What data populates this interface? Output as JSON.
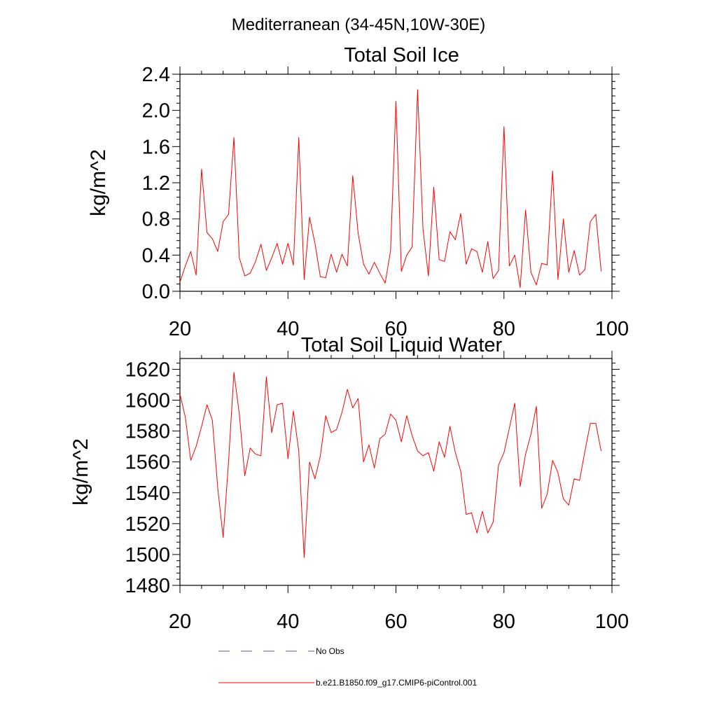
{
  "figure_title": "Mediterranean (34-45N,10W-30E)",
  "legend": [
    {
      "label": "No Obs",
      "color": "#5a5a8a",
      "style": "dashed"
    },
    {
      "label": "b.e21.B1850.f09_g17.CMIP6-piControl.001",
      "color": "#ff0000",
      "style": "solid"
    }
  ],
  "chart_data": [
    {
      "type": "line",
      "title": "Total Soil Ice",
      "xlabel": "",
      "ylabel": "kg/m^2",
      "xlim": [
        20,
        100
      ],
      "ylim": [
        0,
        2.4
      ],
      "xticks": [
        20,
        40,
        60,
        80,
        100
      ],
      "xtick_labels": [
        "20",
        "40",
        "60",
        "80",
        "100"
      ],
      "yticks": [
        0,
        0.4,
        0.8,
        1.2,
        1.6,
        2.0,
        2.4
      ],
      "ytick_labels": [
        "0.0",
        "0.4",
        "0.8",
        "1.2",
        "1.6",
        "2.0",
        "2.4"
      ],
      "series": [
        {
          "name": "b.e21.B1850.f09_g17.CMIP6-piControl.001",
          "color": "#ff0000",
          "x": [
            20,
            21,
            22,
            23,
            24,
            25,
            26,
            27,
            28,
            29,
            30,
            31,
            32,
            33,
            34,
            35,
            36,
            37,
            38,
            39,
            40,
            41,
            42,
            43,
            44,
            45,
            46,
            47,
            48,
            49,
            50,
            51,
            52,
            53,
            54,
            55,
            56,
            57,
            58,
            59,
            60,
            61,
            62,
            63,
            64,
            65,
            66,
            67,
            68,
            69,
            70,
            71,
            72,
            73,
            74,
            75,
            76,
            77,
            78,
            79,
            80,
            81,
            82,
            83,
            84,
            85,
            86,
            87,
            88,
            89,
            90,
            91,
            92,
            93,
            94,
            95,
            96,
            97,
            98
          ],
          "values": [
            0.1,
            0.28,
            0.44,
            0.18,
            1.35,
            0.65,
            0.58,
            0.44,
            0.77,
            0.85,
            1.7,
            0.37,
            0.17,
            0.2,
            0.33,
            0.52,
            0.23,
            0.37,
            0.53,
            0.3,
            0.53,
            0.29,
            1.7,
            0.13,
            0.82,
            0.53,
            0.16,
            0.15,
            0.41,
            0.21,
            0.41,
            0.28,
            1.28,
            0.64,
            0.3,
            0.19,
            0.32,
            0.2,
            0.09,
            0.45,
            2.1,
            0.22,
            0.4,
            0.49,
            2.23,
            0.69,
            0.17,
            1.15,
            0.35,
            0.33,
            0.66,
            0.57,
            0.86,
            0.3,
            0.47,
            0.44,
            0.21,
            0.55,
            0.14,
            0.23,
            1.82,
            0.28,
            0.4,
            0.04,
            0.9,
            0.21,
            0.07,
            0.31,
            0.29,
            1.33,
            0.13,
            0.8,
            0.21,
            0.45,
            0.18,
            0.24,
            0.77,
            0.85,
            0.22
          ]
        }
      ]
    },
    {
      "type": "line",
      "title": "Total Soil Liquid Water",
      "xlabel": "",
      "ylabel": "kg/m^2",
      "xlim": [
        20,
        100
      ],
      "ylim": [
        1480,
        1627
      ],
      "xticks": [
        20,
        40,
        60,
        80,
        100
      ],
      "xtick_labels": [
        "20",
        "40",
        "60",
        "80",
        "100"
      ],
      "yticks": [
        1480,
        1500,
        1520,
        1540,
        1560,
        1580,
        1600,
        1620
      ],
      "ytick_labels": [
        "1480",
        "1500",
        "1520",
        "1540",
        "1560",
        "1580",
        "1600",
        "1620"
      ],
      "series": [
        {
          "name": "b.e21.B1850.f09_g17.CMIP6-piControl.001",
          "color": "#ff0000",
          "x": [
            20,
            21,
            22,
            23,
            24,
            25,
            26,
            27,
            28,
            29,
            30,
            31,
            32,
            33,
            34,
            35,
            36,
            37,
            38,
            39,
            40,
            41,
            42,
            43,
            44,
            45,
            46,
            47,
            48,
            49,
            50,
            51,
            52,
            53,
            54,
            55,
            56,
            57,
            58,
            59,
            60,
            61,
            62,
            63,
            64,
            65,
            66,
            67,
            68,
            69,
            70,
            71,
            72,
            73,
            74,
            75,
            76,
            77,
            78,
            79,
            80,
            81,
            82,
            83,
            84,
            85,
            86,
            87,
            88,
            89,
            90,
            91,
            92,
            93,
            94,
            95,
            96,
            97,
            98
          ],
          "values": [
            1604,
            1589,
            1561,
            1570,
            1583,
            1597,
            1587,
            1543,
            1511,
            1560,
            1618,
            1591,
            1551,
            1569,
            1565,
            1564,
            1615,
            1579,
            1597,
            1598,
            1562,
            1593,
            1567,
            1498,
            1560,
            1549,
            1564,
            1590,
            1579,
            1581,
            1592,
            1607,
            1595,
            1601,
            1560,
            1571,
            1556,
            1575,
            1578,
            1591,
            1587,
            1573,
            1590,
            1577,
            1567,
            1564,
            1566,
            1554,
            1573,
            1563,
            1583,
            1566,
            1554,
            1526,
            1527,
            1514,
            1528,
            1514,
            1521,
            1558,
            1566,
            1582,
            1598,
            1544,
            1565,
            1578,
            1596,
            1530,
            1539,
            1561,
            1553,
            1536,
            1532,
            1549,
            1548,
            1567,
            1585,
            1585,
            1567
          ]
        }
      ]
    }
  ]
}
